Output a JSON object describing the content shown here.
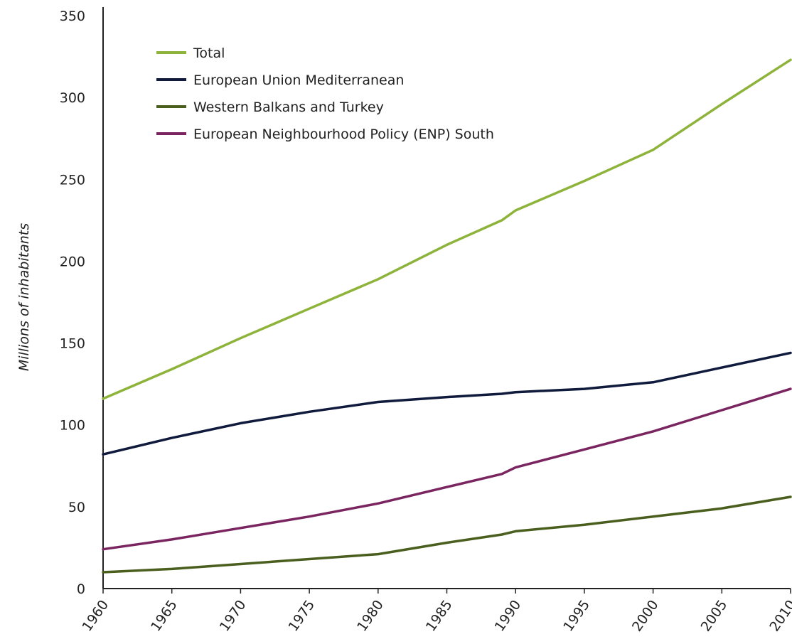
{
  "chart_data": {
    "type": "line",
    "title": "",
    "xlabel": "",
    "ylabel": "Millions of inhabitants",
    "xlim": [
      1960,
      2010
    ],
    "ylim": [
      0,
      350
    ],
    "grid": false,
    "legend_position": "top-left",
    "x_ticks": [
      "1960",
      "1965",
      "1970",
      "1975",
      "1980",
      "1985",
      "1990",
      "1995",
      "2000",
      "2005",
      "2010"
    ],
    "y_ticks": [
      "0",
      "50",
      "100",
      "150",
      "200",
      "250",
      "300",
      "350"
    ],
    "x": [
      1960,
      1965,
      1970,
      1975,
      1980,
      1985,
      1989,
      1990,
      1995,
      2000,
      2005,
      2010
    ],
    "series": [
      {
        "name": "Total",
        "color": "#8db33a",
        "values": [
          116,
          134,
          153,
          171,
          189,
          210,
          225,
          231,
          249,
          268,
          296,
          323
        ]
      },
      {
        "name": "European Union Mediterranean",
        "color": "#0f1a3c",
        "values": [
          82,
          92,
          101,
          108,
          114,
          117,
          119,
          120,
          122,
          126,
          135,
          144
        ]
      },
      {
        "name": "Western Balkans and Turkey",
        "color": "#4a5e1e",
        "values": [
          10,
          12,
          15,
          18,
          21,
          28,
          33,
          35,
          39,
          44,
          49,
          56
        ]
      },
      {
        "name": "European Neighbourhood Policy (ENP) South",
        "color": "#7a2560",
        "values": [
          24,
          30,
          37,
          44,
          52,
          62,
          70,
          74,
          85,
          96,
          109,
          122
        ]
      }
    ]
  }
}
